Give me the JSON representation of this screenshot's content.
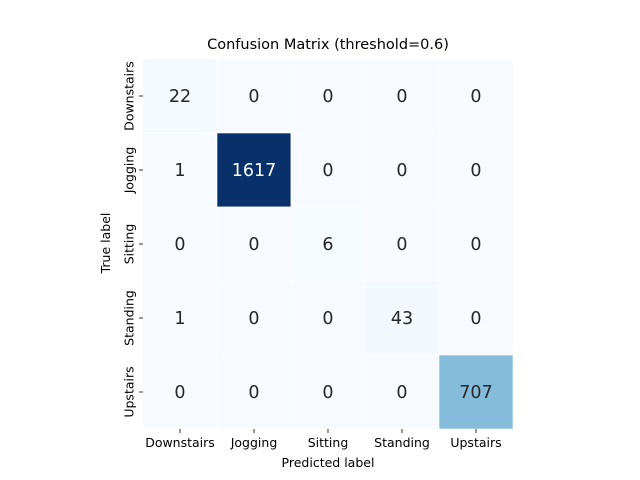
{
  "chart_data": {
    "type": "heatmap",
    "title": "Confusion Matrix (threshold=0.6)",
    "xlabel": "Predicted label",
    "ylabel": "True label",
    "x_categories": [
      "Downstairs",
      "Jogging",
      "Sitting",
      "Standing",
      "Upstairs"
    ],
    "y_categories": [
      "Downstairs",
      "Jogging",
      "Sitting",
      "Standing",
      "Upstairs"
    ],
    "values": [
      [
        22,
        0,
        0,
        0,
        0
      ],
      [
        1,
        1617,
        0,
        0,
        0
      ],
      [
        0,
        0,
        6,
        0,
        0
      ],
      [
        1,
        0,
        0,
        43,
        0
      ],
      [
        0,
        0,
        0,
        0,
        707
      ]
    ],
    "colormap": "Blues",
    "colorbar": false,
    "grid": false,
    "cell_separator_color": "#ffffff"
  }
}
